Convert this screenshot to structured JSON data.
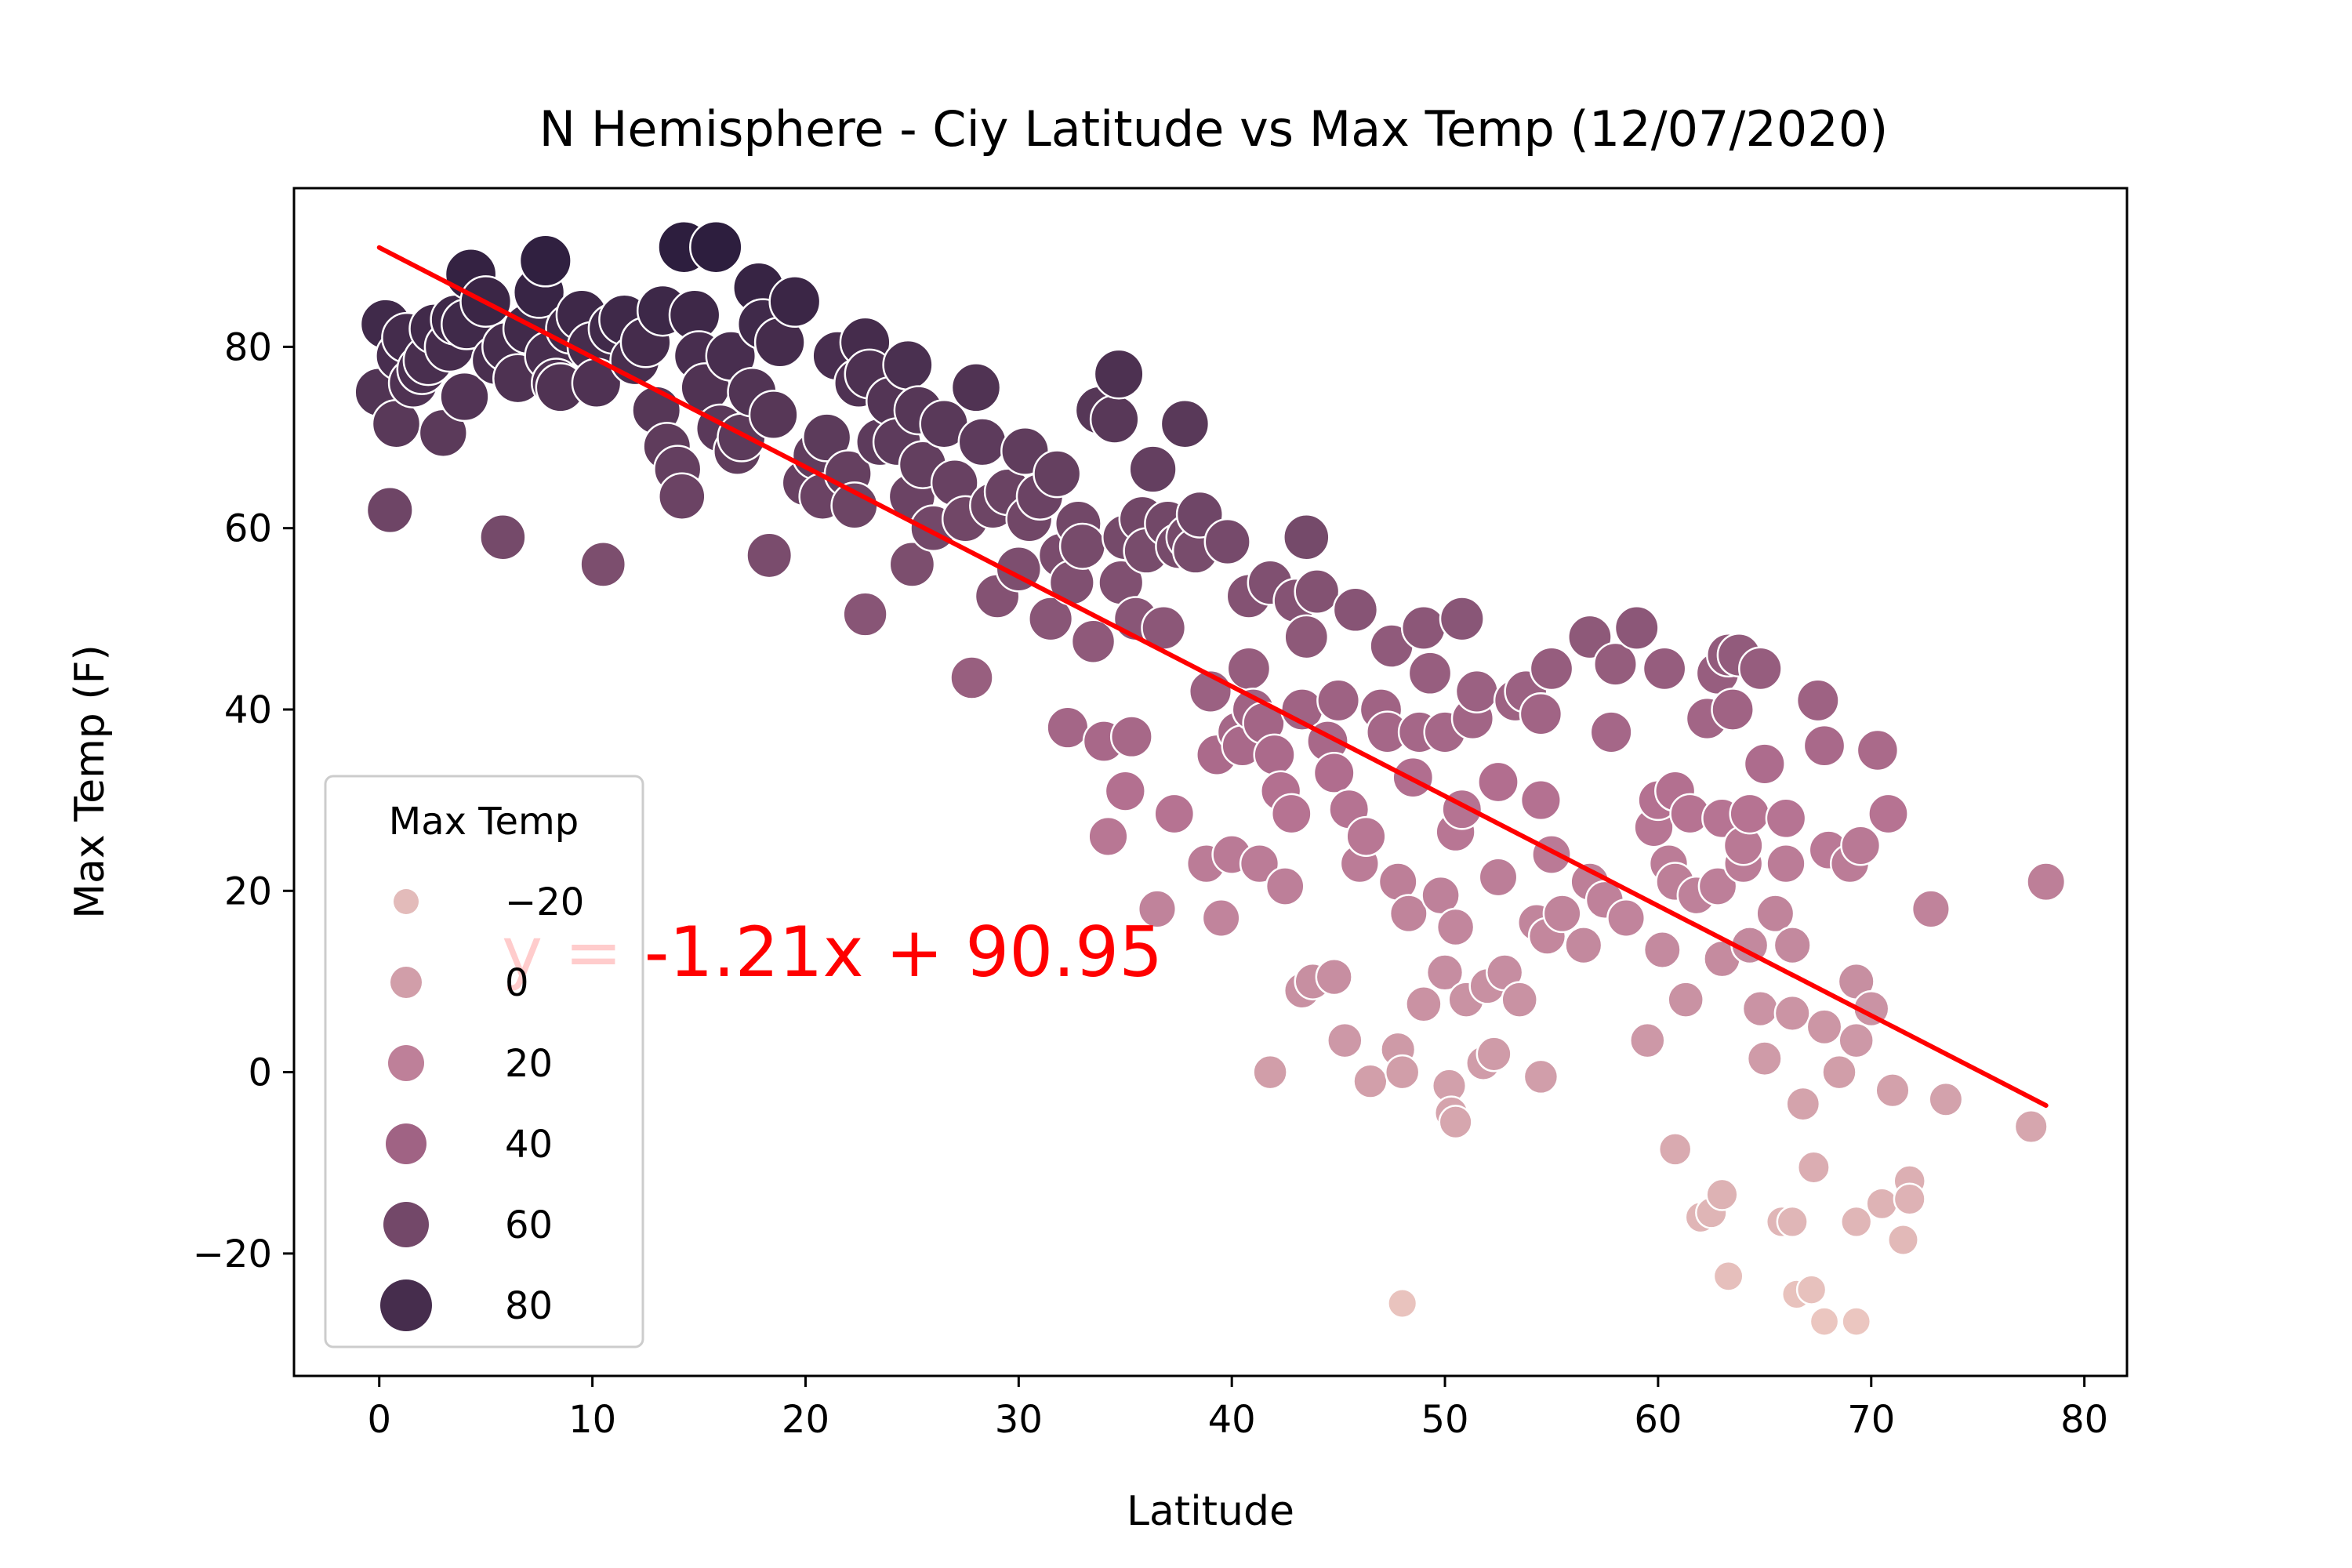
{
  "chart_data": {
    "type": "scatter",
    "title": "N Hemisphere - Ciy Latitude vs Max Temp (12/07/2020)",
    "xlabel": "Latitude",
    "ylabel": "Max Temp (F)",
    "xlim": [
      -4,
      82
    ],
    "ylim": [
      -33.5,
      97.5
    ],
    "xticks": [
      0,
      10,
      20,
      30,
      40,
      50,
      60,
      70,
      80
    ],
    "yticks": [
      -20,
      0,
      20,
      40,
      60,
      80
    ],
    "hue_variable": "Max Temp",
    "regression": {
      "slope": -1.21,
      "intercept": 90.95,
      "x_range": [
        0,
        78.2
      ],
      "equation": "y = -1.21x + 90.95",
      "color": "#ff0000"
    },
    "legend": {
      "title": "Max Temp",
      "placement": "lower-left",
      "entries": [
        {
          "label": "−20",
          "value": -20
        },
        {
          "label": "0",
          "value": 0
        },
        {
          "label": "20",
          "value": 20
        },
        {
          "label": "40",
          "value": 40
        },
        {
          "label": "60",
          "value": 60
        },
        {
          "label": "80",
          "value": 80
        }
      ]
    },
    "colors": {
      "light": "#ebc7c0",
      "mid": "#b36f90",
      "dark": "#2d1e3e"
    },
    "points": [
      [
        0.0,
        75
      ],
      [
        0.3,
        82.5
      ],
      [
        0.5,
        62
      ],
      [
        0.8,
        71.5
      ],
      [
        1.0,
        79
      ],
      [
        1.3,
        81
      ],
      [
        1.6,
        76
      ],
      [
        2.0,
        77.5
      ],
      [
        2.3,
        78.5
      ],
      [
        2.6,
        82
      ],
      [
        3.0,
        70.5
      ],
      [
        3.3,
        80
      ],
      [
        3.6,
        83
      ],
      [
        4.0,
        74.5
      ],
      [
        4.1,
        82.5
      ],
      [
        4.3,
        88
      ],
      [
        5.0,
        85
      ],
      [
        5.5,
        78.5
      ],
      [
        5.8,
        59
      ],
      [
        6.0,
        80
      ],
      [
        6.5,
        76.5
      ],
      [
        7.0,
        82
      ],
      [
        7.5,
        86
      ],
      [
        7.8,
        89.5
      ],
      [
        8.0,
        79
      ],
      [
        8.3,
        76
      ],
      [
        8.5,
        75.5
      ],
      [
        9.0,
        82
      ],
      [
        9.5,
        83.5
      ],
      [
        10.0,
        80
      ],
      [
        10.2,
        76
      ],
      [
        10.5,
        56
      ],
      [
        11.0,
        82
      ],
      [
        11.5,
        83
      ],
      [
        12.0,
        78.5
      ],
      [
        12.5,
        80.5
      ],
      [
        13.0,
        73
      ],
      [
        13.3,
        84
      ],
      [
        13.5,
        69
      ],
      [
        14.0,
        66.5
      ],
      [
        14.2,
        63.5
      ],
      [
        14.3,
        91
      ],
      [
        14.8,
        83.5
      ],
      [
        15.0,
        79
      ],
      [
        15.3,
        75.5
      ],
      [
        15.8,
        91
      ],
      [
        16.0,
        71
      ],
      [
        16.5,
        79
      ],
      [
        16.8,
        68.5
      ],
      [
        17.0,
        70
      ],
      [
        17.5,
        75
      ],
      [
        17.8,
        86.5
      ],
      [
        18.0,
        82.5
      ],
      [
        18.3,
        57
      ],
      [
        18.5,
        72.5
      ],
      [
        18.8,
        80.5
      ],
      [
        19.5,
        85
      ],
      [
        20.0,
        65
      ],
      [
        20.5,
        68
      ],
      [
        20.8,
        63.5
      ],
      [
        21.0,
        70
      ],
      [
        21.5,
        79
      ],
      [
        22.0,
        66
      ],
      [
        22.3,
        62.5
      ],
      [
        22.5,
        76
      ],
      [
        22.8,
        80.5
      ],
      [
        22.8,
        50.5
      ],
      [
        23.0,
        77
      ],
      [
        23.5,
        69.5
      ],
      [
        24.0,
        74
      ],
      [
        24.3,
        69.5
      ],
      [
        24.8,
        78
      ],
      [
        25.0,
        56
      ],
      [
        25.0,
        63.5
      ],
      [
        25.3,
        73
      ],
      [
        25.5,
        67
      ],
      [
        26.0,
        60
      ],
      [
        26.5,
        71.5
      ],
      [
        27.0,
        65
      ],
      [
        27.5,
        61
      ],
      [
        27.8,
        43.5
      ],
      [
        28.0,
        75.5
      ],
      [
        28.3,
        69.5
      ],
      [
        28.8,
        62.5
      ],
      [
        29.0,
        52.5
      ],
      [
        29.5,
        64
      ],
      [
        30.0,
        55.5
      ],
      [
        30.3,
        68.5
      ],
      [
        30.5,
        61
      ],
      [
        31.0,
        63.5
      ],
      [
        31.5,
        50
      ],
      [
        31.8,
        66
      ],
      [
        32.0,
        57
      ],
      [
        32.3,
        38
      ],
      [
        32.5,
        54
      ],
      [
        32.8,
        60.5
      ],
      [
        33.0,
        58
      ],
      [
        33.5,
        47.5
      ],
      [
        33.8,
        73
      ],
      [
        34.0,
        36.5
      ],
      [
        34.2,
        26
      ],
      [
        34.5,
        72
      ],
      [
        34.7,
        77
      ],
      [
        34.8,
        54
      ],
      [
        35.0,
        59
      ],
      [
        35.0,
        31
      ],
      [
        35.3,
        37
      ],
      [
        35.5,
        50
      ],
      [
        35.8,
        61
      ],
      [
        36.0,
        57.5
      ],
      [
        36.3,
        66.5
      ],
      [
        36.5,
        18
      ],
      [
        36.8,
        49
      ],
      [
        37.0,
        60.5
      ],
      [
        37.3,
        28.5
      ],
      [
        37.5,
        58
      ],
      [
        37.8,
        71.5
      ],
      [
        38.0,
        59
      ],
      [
        38.3,
        57.5
      ],
      [
        38.5,
        61.5
      ],
      [
        38.8,
        23
      ],
      [
        39.0,
        42
      ],
      [
        39.3,
        35
      ],
      [
        39.5,
        17
      ],
      [
        39.8,
        58.5
      ],
      [
        40.0,
        24
      ],
      [
        40.3,
        37.5
      ],
      [
        40.5,
        36
      ],
      [
        40.8,
        44.5
      ],
      [
        40.8,
        52.5
      ],
      [
        41.0,
        40
      ],
      [
        41.3,
        23
      ],
      [
        41.5,
        38.5
      ],
      [
        41.8,
        0
      ],
      [
        41.8,
        54
      ],
      [
        42.0,
        35
      ],
      [
        42.3,
        31
      ],
      [
        42.5,
        20.5
      ],
      [
        42.8,
        28.5
      ],
      [
        43.0,
        52
      ],
      [
        43.3,
        40
      ],
      [
        43.5,
        48
      ],
      [
        43.5,
        59
      ],
      [
        43.3,
        9
      ],
      [
        43.8,
        10
      ],
      [
        44.0,
        53
      ],
      [
        44.5,
        36.5
      ],
      [
        44.8,
        33
      ],
      [
        44.8,
        10.5
      ],
      [
        45.0,
        41
      ],
      [
        45.3,
        3.5
      ],
      [
        45.5,
        29
      ],
      [
        45.8,
        51
      ],
      [
        46.0,
        23
      ],
      [
        46.3,
        26
      ],
      [
        46.5,
        -1
      ],
      [
        47.0,
        40
      ],
      [
        47.3,
        37.5
      ],
      [
        47.5,
        47
      ],
      [
        47.8,
        21
      ],
      [
        47.8,
        2.5
      ],
      [
        48.0,
        -25.5
      ],
      [
        48.0,
        0
      ],
      [
        48.3,
        17.5
      ],
      [
        48.5,
        32.5
      ],
      [
        48.8,
        37.5
      ],
      [
        49.0,
        49
      ],
      [
        49.0,
        7.5
      ],
      [
        49.3,
        44
      ],
      [
        49.8,
        19.5
      ],
      [
        50.0,
        37.5
      ],
      [
        50.0,
        11
      ],
      [
        50.2,
        -1.5
      ],
      [
        50.3,
        -4.5
      ],
      [
        50.5,
        -5.5
      ],
      [
        50.5,
        16
      ],
      [
        50.5,
        26.5
      ],
      [
        50.8,
        29
      ],
      [
        50.8,
        50
      ],
      [
        51.0,
        8
      ],
      [
        51.3,
        39
      ],
      [
        51.5,
        42
      ],
      [
        51.8,
        1
      ],
      [
        52.0,
        9.5
      ],
      [
        52.3,
        2
      ],
      [
        52.5,
        32
      ],
      [
        52.5,
        21.5
      ],
      [
        52.8,
        11
      ],
      [
        53.3,
        41
      ],
      [
        53.5,
        8
      ],
      [
        53.8,
        42
      ],
      [
        54.3,
        16.5
      ],
      [
        54.5,
        39.5
      ],
      [
        54.5,
        30
      ],
      [
        54.5,
        -0.5
      ],
      [
        54.8,
        15
      ],
      [
        55.0,
        24
      ],
      [
        55.0,
        44.5
      ],
      [
        55.5,
        17.5
      ],
      [
        56.5,
        14
      ],
      [
        56.8,
        21
      ],
      [
        56.8,
        48
      ],
      [
        57.5,
        19
      ],
      [
        57.8,
        37.5
      ],
      [
        58.0,
        45
      ],
      [
        58.5,
        17
      ],
      [
        59.0,
        49
      ],
      [
        59.5,
        3.5
      ],
      [
        59.8,
        27
      ],
      [
        60.0,
        30
      ],
      [
        60.2,
        13.5
      ],
      [
        60.3,
        44.5
      ],
      [
        60.5,
        23
      ],
      [
        60.8,
        31
      ],
      [
        60.8,
        21
      ],
      [
        60.8,
        -8.5
      ],
      [
        61.3,
        8
      ],
      [
        61.5,
        28.5
      ],
      [
        61.8,
        19.5
      ],
      [
        62.0,
        -16
      ],
      [
        62.3,
        39
      ],
      [
        62.5,
        -15.5
      ],
      [
        62.8,
        20.5
      ],
      [
        62.8,
        44
      ],
      [
        63.0,
        12.5
      ],
      [
        63.0,
        -13.5
      ],
      [
        63.0,
        28
      ],
      [
        63.3,
        -22.5
      ],
      [
        63.3,
        46
      ],
      [
        63.5,
        40
      ],
      [
        63.8,
        46
      ],
      [
        64.0,
        23
      ],
      [
        64.0,
        25
      ],
      [
        64.3,
        28.5
      ],
      [
        64.3,
        14
      ],
      [
        64.8,
        7
      ],
      [
        64.8,
        44.5
      ],
      [
        65.0,
        34
      ],
      [
        65.0,
        1.5
      ],
      [
        65.5,
        17.5
      ],
      [
        65.8,
        -16.5
      ],
      [
        66.0,
        23
      ],
      [
        66.0,
        28
      ],
      [
        66.3,
        14
      ],
      [
        66.3,
        -16.5
      ],
      [
        66.3,
        6.5
      ],
      [
        66.5,
        -24.5
      ],
      [
        66.8,
        -3.5
      ],
      [
        67.2,
        -24
      ],
      [
        67.3,
        -10.5
      ],
      [
        67.5,
        41
      ],
      [
        67.8,
        -27.5
      ],
      [
        67.8,
        5
      ],
      [
        67.8,
        36
      ],
      [
        68.0,
        24.5
      ],
      [
        68.5,
        0
      ],
      [
        69.0,
        23
      ],
      [
        69.3,
        -27.5
      ],
      [
        69.3,
        10
      ],
      [
        69.3,
        3.5
      ],
      [
        69.3,
        -16.5
      ],
      [
        69.5,
        25
      ],
      [
        70.0,
        7
      ],
      [
        70.3,
        35.5
      ],
      [
        70.5,
        -14.5
      ],
      [
        70.8,
        28.5
      ],
      [
        71.0,
        -2
      ],
      [
        71.5,
        -18.5
      ],
      [
        71.8,
        -12
      ],
      [
        71.8,
        -14
      ],
      [
        72.8,
        18
      ],
      [
        73.5,
        -3
      ],
      [
        77.5,
        -6
      ],
      [
        78.2,
        21
      ]
    ]
  }
}
